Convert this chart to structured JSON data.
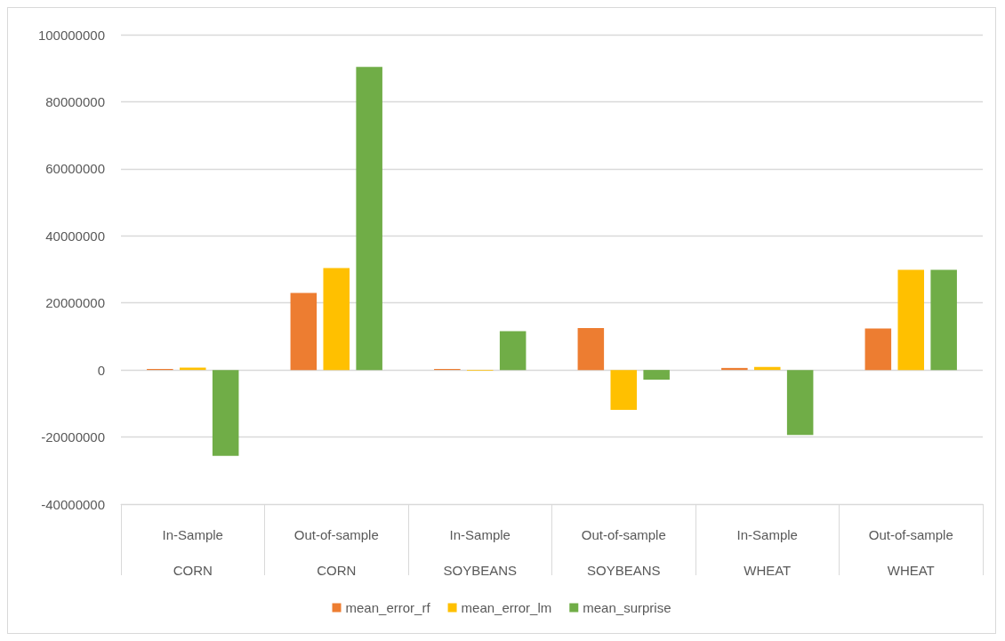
{
  "chart_data": {
    "type": "bar",
    "categories": [
      "In-Sample\nCORN",
      "Out-of-sample\nCORN",
      "In-Sample\nSOYBEANS",
      "Out-of-sample\nSOYBEANS",
      "In-Sample\nWHEAT",
      "Out-of-sample\nWHEAT"
    ],
    "series": [
      {
        "name": "mean_error_rf",
        "color": "#ed7d31",
        "values": [
          300000,
          23000000,
          300000,
          12500000,
          600000,
          12400000
        ]
      },
      {
        "name": "mean_error_lm",
        "color": "#ffc000",
        "values": [
          700000,
          30400000,
          -200000,
          -11900000,
          900000,
          29900000
        ]
      },
      {
        "name": "mean_surprise",
        "color": "#70ad47",
        "values": [
          -25600000,
          90400000,
          11600000,
          -2900000,
          -19400000,
          29900000
        ]
      }
    ],
    "ylim": [
      -40000000,
      100000000
    ],
    "yticks": [
      -40000000,
      -20000000,
      0,
      20000000,
      40000000,
      60000000,
      80000000,
      100000000
    ],
    "grid": "y",
    "legend": "bottom"
  }
}
